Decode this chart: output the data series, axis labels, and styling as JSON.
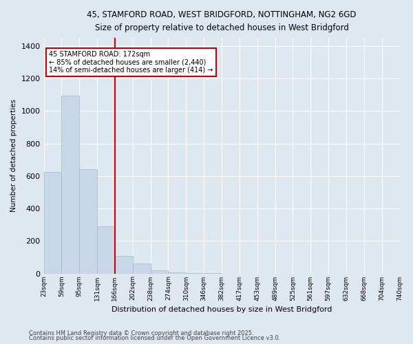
{
  "title_line1": "45, STAMFORD ROAD, WEST BRIDGFORD, NOTTINGHAM, NG2 6GD",
  "title_line2": "Size of property relative to detached houses in West Bridgford",
  "xlabel": "Distribution of detached houses by size in West Bridgford",
  "ylabel": "Number of detached properties",
  "bin_labels": [
    "23sqm",
    "59sqm",
    "95sqm",
    "131sqm",
    "166sqm",
    "202sqm",
    "238sqm",
    "274sqm",
    "310sqm",
    "346sqm",
    "382sqm",
    "417sqm",
    "453sqm",
    "489sqm",
    "525sqm",
    "561sqm",
    "597sqm",
    "632sqm",
    "668sqm",
    "704sqm",
    "740sqm"
  ],
  "bar_values": [
    625,
    1095,
    640,
    290,
    110,
    60,
    20,
    5,
    2,
    1,
    0,
    0,
    0,
    0,
    0,
    0,
    0,
    0,
    0,
    0
  ],
  "bar_color": "#c8d8e8",
  "bar_edge_color": "#a0b8cc",
  "vline_bin_index": 4,
  "annotation_text": "45 STAMFORD ROAD: 172sqm\n← 85% of detached houses are smaller (2,440)\n14% of semi-detached houses are larger (414) →",
  "annotation_box_color": "#ffffff",
  "annotation_box_edge": "#cc0000",
  "vline_color": "#cc0000",
  "ylim": [
    0,
    1450
  ],
  "yticks": [
    0,
    200,
    400,
    600,
    800,
    1000,
    1200,
    1400
  ],
  "background_color": "#dde8f0",
  "grid_color": "#ffffff",
  "footnote1": "Contains HM Land Registry data © Crown copyright and database right 2025.",
  "footnote2": "Contains public sector information licensed under the Open Government Licence v3.0."
}
